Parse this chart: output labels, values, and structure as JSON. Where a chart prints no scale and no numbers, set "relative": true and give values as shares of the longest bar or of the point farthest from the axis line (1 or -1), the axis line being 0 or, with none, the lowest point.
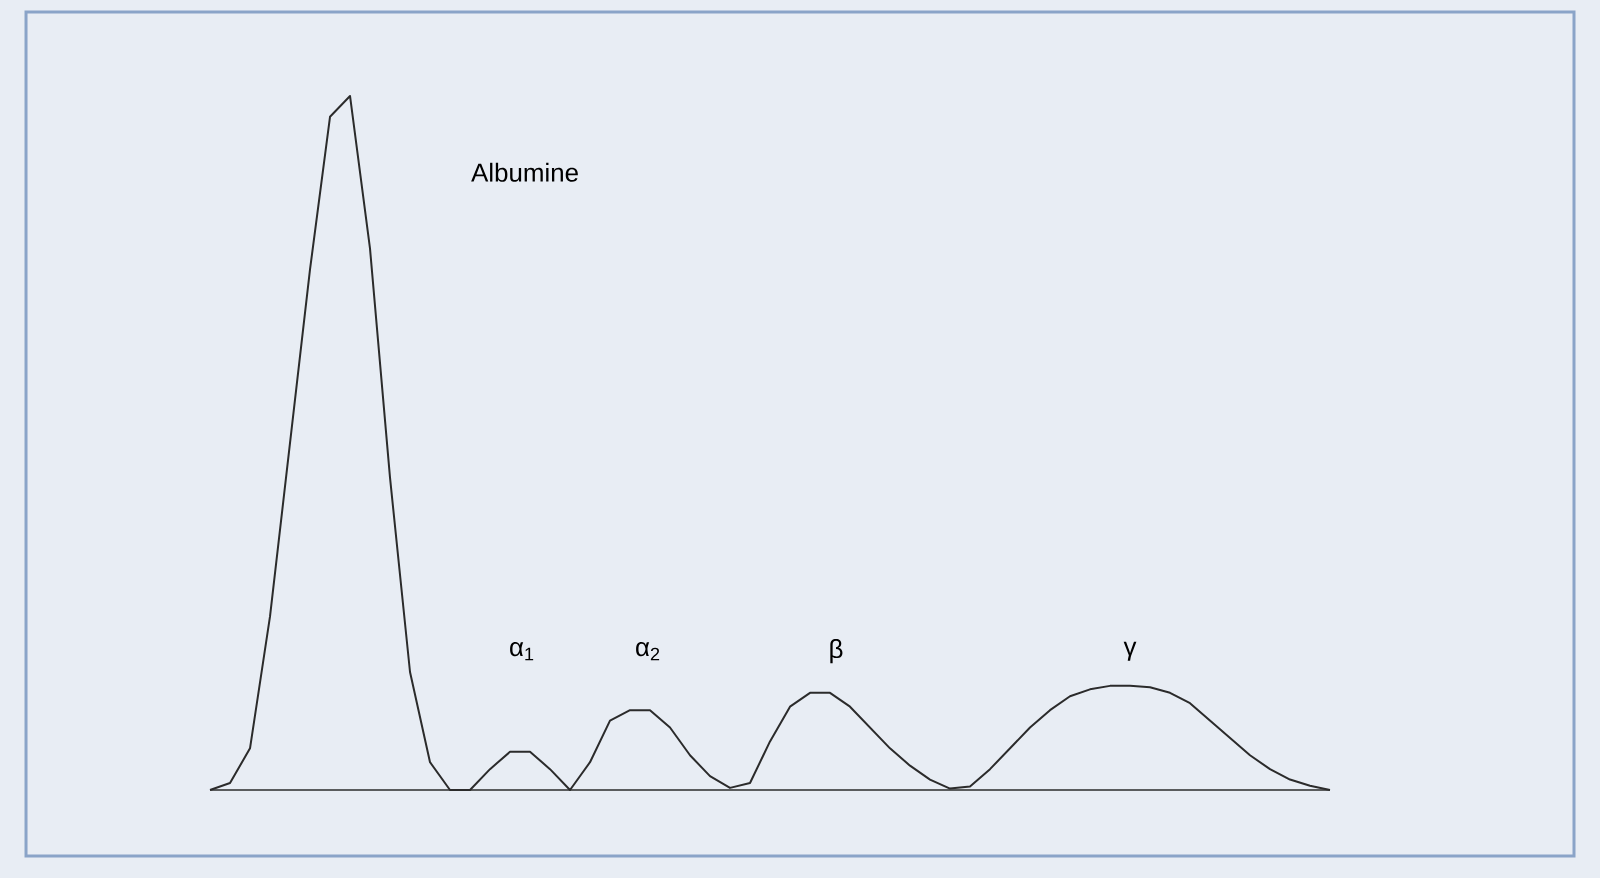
{
  "chart_data": {
    "type": "line",
    "relative": true,
    "color": "#2b2b2b",
    "categories": [
      null,
      null,
      null,
      null,
      null,
      null,
      null,
      null,
      null,
      null,
      null,
      null,
      null,
      null,
      null,
      null,
      null,
      null,
      null,
      null,
      null,
      null,
      null,
      null,
      null,
      null,
      null,
      null,
      null,
      null,
      null,
      null,
      null,
      null,
      null,
      null,
      null,
      null,
      null,
      null,
      null,
      null,
      null,
      null,
      null,
      null,
      null,
      null,
      null,
      null,
      null,
      null,
      null,
      null,
      null,
      null,
      null
    ],
    "values": [
      0,
      0.01,
      0.06,
      0.25,
      0.5,
      0.75,
      0.97,
      1.0,
      0.78,
      0.45,
      0.17,
      0.04,
      0,
      0,
      0.03,
      0.055,
      0.055,
      0.03,
      0,
      0.04,
      0.1,
      0.115,
      0.115,
      0.09,
      0.05,
      0.02,
      0.003,
      0.01,
      0.07,
      0.12,
      0.14,
      0.14,
      0.12,
      0.09,
      0.06,
      0.035,
      0.015,
      0.002,
      0.005,
      0.03,
      0.06,
      0.09,
      0.115,
      0.135,
      0.145,
      0.15,
      0.15,
      0.148,
      0.14,
      0.125,
      0.1,
      0.075,
      0.05,
      0.03,
      0.015,
      0.006,
      0
    ],
    "annotations": [
      "Albumine",
      "α$_{1}$",
      "α$_{2}$",
      "β",
      "γ"
    ]
  }
}
